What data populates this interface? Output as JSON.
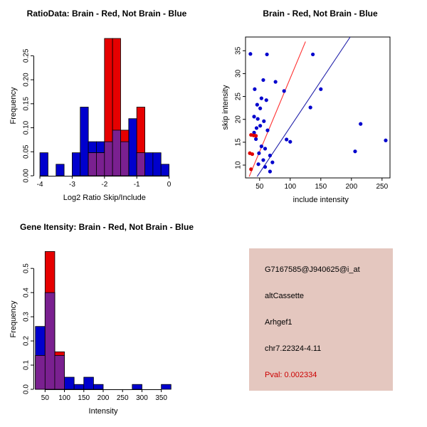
{
  "window": {
    "background": "#ffffff"
  },
  "colors": {
    "brain_red": "#E60000",
    "not_brain_blue": "#0000CD",
    "overlap_purple": "#7A2090",
    "red_fit_line": "#FF3030",
    "blue_fit_line": "#2222AA",
    "info_bg": "#E4C7BF",
    "pval_red": "#CC0000"
  },
  "chart_data": [
    {
      "id": "ratio_hist",
      "type": "bar",
      "title": "RatioData: Brain - Red, Not Brain - Blue",
      "xlabel": "Log2 Ratio Skip/Include",
      "ylabel": "Frequency",
      "xlim": [
        -4.2,
        0.12
      ],
      "ylim": [
        0,
        0.292
      ],
      "xticks": [
        -4,
        -3,
        -2,
        -1,
        0
      ],
      "xtick_labels": [
        "-4",
        "-3",
        "-2",
        "-1",
        "0"
      ],
      "yticks": [
        0,
        0.05,
        0.1,
        0.15,
        0.2,
        0.25
      ],
      "ytick_labels": [
        "0.00",
        "0.05",
        "0.10",
        "0.15",
        "0.20",
        "0.25"
      ],
      "bin_width": 0.25,
      "overlap_color": "#7A2090",
      "grid": false,
      "series": [
        {
          "name": "Not Brain",
          "color": "#0000CD",
          "bins": [
            {
              "x": -4.0,
              "h": 0.048
            },
            {
              "x": -3.5,
              "h": 0.024
            },
            {
              "x": -3.0,
              "h": 0.048
            },
            {
              "x": -2.75,
              "h": 0.143
            },
            {
              "x": -2.5,
              "h": 0.071
            },
            {
              "x": -2.25,
              "h": 0.071
            },
            {
              "x": -2.0,
              "h": 0.071
            },
            {
              "x": -1.75,
              "h": 0.095
            },
            {
              "x": -1.5,
              "h": 0.071
            },
            {
              "x": -1.25,
              "h": 0.119
            },
            {
              "x": -1.0,
              "h": 0.048
            },
            {
              "x": -0.75,
              "h": 0.048
            },
            {
              "x": -0.5,
              "h": 0.048
            },
            {
              "x": -0.25,
              "h": 0.024
            }
          ]
        },
        {
          "name": "Brain",
          "color": "#E60000",
          "bins": [
            {
              "x": -2.5,
              "h": 0.048
            },
            {
              "x": -2.25,
              "h": 0.048
            },
            {
              "x": -2.0,
              "h": 0.286
            },
            {
              "x": -1.75,
              "h": 0.286
            },
            {
              "x": -1.5,
              "h": 0.095
            },
            {
              "x": -1.0,
              "h": 0.143
            }
          ]
        }
      ]
    },
    {
      "id": "scatter",
      "type": "scatter",
      "title": "Brain - Red, Not Brain - Blue",
      "xlabel": "include intensity",
      "ylabel": "skip intensity",
      "xlim": [
        27,
        263
      ],
      "ylim": [
        7.2,
        38
      ],
      "xticks": [
        50,
        100,
        150,
        200,
        250
      ],
      "xtick_labels": [
        "50",
        "100",
        "150",
        "200",
        "250"
      ],
      "yticks": [
        10,
        15,
        20,
        25,
        30,
        35
      ],
      "ytick_labels": [
        "10",
        "15",
        "20",
        "25",
        "30",
        "35"
      ],
      "grid": false,
      "series": [
        {
          "name": "Not Brain",
          "color": "#0000CD",
          "points": [
            [
              35,
              34.3
            ],
            [
              62,
              34.2
            ],
            [
              137,
              34.2
            ],
            [
              56,
              28.6
            ],
            [
              76,
              28.2
            ],
            [
              42,
              26.6
            ],
            [
              90,
              26.2
            ],
            [
              150,
              26.6
            ],
            [
              53,
              24.6
            ],
            [
              61,
              24.2
            ],
            [
              46,
              23.2
            ],
            [
              51,
              22.4
            ],
            [
              133,
              22.6
            ],
            [
              41,
              20.6
            ],
            [
              47,
              20.1
            ],
            [
              57,
              19.6
            ],
            [
              51,
              18.6
            ],
            [
              45,
              18.1
            ],
            [
              63,
              17.6
            ],
            [
              41,
              17.1
            ],
            [
              215,
              19.0
            ],
            [
              256,
              15.4
            ],
            [
              206,
              13.0
            ],
            [
              94,
              15.6
            ],
            [
              100,
              15.1
            ],
            [
              53,
              14.1
            ],
            [
              59,
              13.6
            ],
            [
              49,
              12.6
            ],
            [
              67,
              12.1
            ],
            [
              56,
              11.1
            ],
            [
              71,
              10.6
            ],
            [
              59,
              9.6
            ],
            [
              67,
              8.6
            ],
            [
              44,
              15.7
            ],
            [
              48,
              10.2
            ]
          ]
        },
        {
          "name": "Brain",
          "color": "#E00000",
          "points": [
            [
              36,
              16.6
            ],
            [
              40,
              16.5
            ],
            [
              44,
              16.4
            ],
            [
              34,
              12.6
            ],
            [
              38,
              12.4
            ],
            [
              36,
              9.1
            ]
          ]
        }
      ],
      "lines": [
        {
          "name": "brain-fit",
          "color": "#FF3030",
          "x1": 33,
          "y1": 7.5,
          "x2": 125,
          "y2": 37
        },
        {
          "name": "not-brain-fit",
          "color": "#2222AA",
          "x1": 46,
          "y1": 7.5,
          "x2": 198,
          "y2": 38
        }
      ]
    },
    {
      "id": "gene_hist",
      "type": "bar",
      "title": "Gene Itensity: Brain - Red, Not Brain - Blue",
      "xlabel": "Intensity",
      "ylabel": "Frequency",
      "xlim": [
        20,
        380
      ],
      "ylim": [
        0,
        0.58
      ],
      "xticks": [
        50,
        100,
        150,
        200,
        250,
        300,
        350
      ],
      "xtick_labels": [
        "50",
        "100",
        "150",
        "200",
        "250",
        "300",
        "350"
      ],
      "yticks": [
        0,
        0.1,
        0.2,
        0.3,
        0.4,
        0.5
      ],
      "ytick_labels": [
        "0.0",
        "0.1",
        "0.2",
        "0.3",
        "0.4",
        "0.5"
      ],
      "bin_width": 25,
      "overlap_color": "#7A2090",
      "grid": false,
      "series": [
        {
          "name": "Not Brain",
          "color": "#0000CD",
          "bins": [
            {
              "x": 25,
              "h": 0.26
            },
            {
              "x": 50,
              "h": 0.4
            },
            {
              "x": 75,
              "h": 0.14
            },
            {
              "x": 100,
              "h": 0.05
            },
            {
              "x": 125,
              "h": 0.02
            },
            {
              "x": 150,
              "h": 0.05
            },
            {
              "x": 175,
              "h": 0.02
            },
            {
              "x": 275,
              "h": 0.02
            },
            {
              "x": 350,
              "h": 0.02
            }
          ]
        },
        {
          "name": "Brain",
          "color": "#E60000",
          "bins": [
            {
              "x": 25,
              "h": 0.14
            },
            {
              "x": 50,
              "h": 0.57
            },
            {
              "x": 75,
              "h": 0.155
            }
          ]
        }
      ]
    }
  ],
  "info_panel": {
    "bg": "#E4C7BF",
    "lines": [
      {
        "text": "G7167585@J940625@i_at",
        "color": "#000000"
      },
      {
        "text": "altCassette",
        "color": "#000000"
      },
      {
        "text": "Arhgef1",
        "color": "#000000"
      },
      {
        "text": "chr7.22324-4.11",
        "color": "#000000"
      },
      {
        "text": "Pval: 0.002334",
        "color": "#CC0000"
      }
    ]
  }
}
